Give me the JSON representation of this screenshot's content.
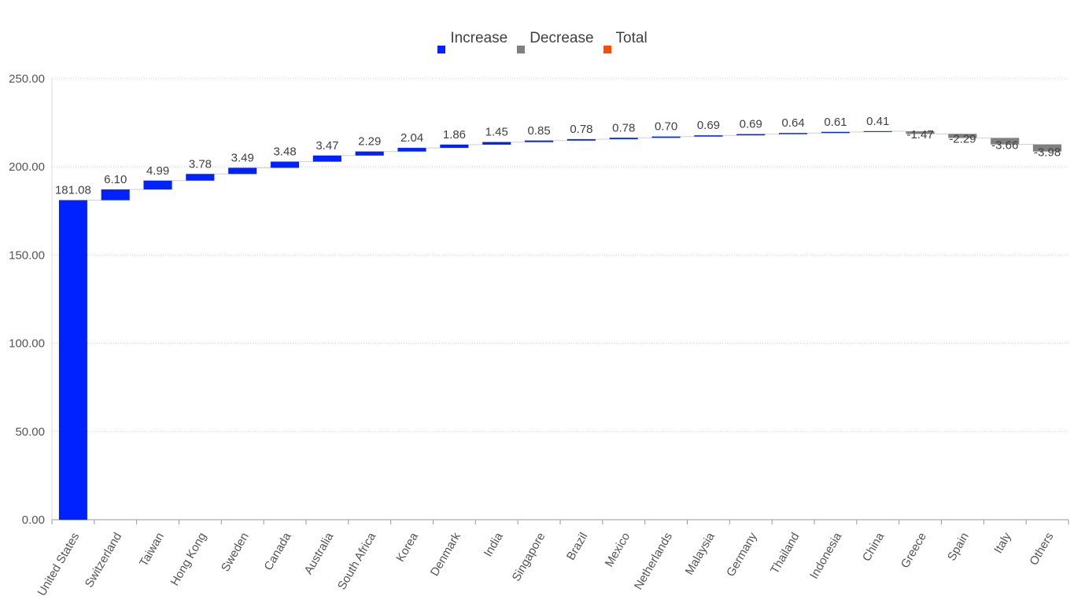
{
  "chart_data": {
    "type": "waterfall",
    "title": "",
    "xlabel": "",
    "ylabel": "",
    "ylim": [
      0,
      250
    ],
    "yticks": [
      0,
      50,
      100,
      150,
      200,
      250
    ],
    "ytick_labels": [
      "0.00",
      "50.00",
      "100.00",
      "150.00",
      "200.00",
      "250.00"
    ],
    "grid": true,
    "legend_position": "top-center",
    "legend": [
      {
        "label": "Increase",
        "color": "#0022ff"
      },
      {
        "label": "Decrease",
        "color": "#808080"
      },
      {
        "label": "Total",
        "color": "#ff4d00"
      }
    ],
    "categories": [
      "United States",
      "Switzerland",
      "Taiwan",
      "Hong Kong",
      "Sweden",
      "Canada",
      "Australia",
      "South Africa",
      "Korea",
      "Denmark",
      "India",
      "Singapore",
      "Brazil",
      "Mexico",
      "Netherlands",
      "Malaysia",
      "Germany",
      "Thailand",
      "Indonesia",
      "China",
      "Greece",
      "Spain",
      "Italy",
      "Others"
    ],
    "values": [
      181.08,
      6.1,
      4.99,
      3.78,
      3.49,
      3.48,
      3.47,
      2.29,
      2.04,
      1.86,
      1.45,
      0.85,
      0.78,
      0.78,
      0.7,
      0.69,
      0.69,
      0.64,
      0.61,
      0.41,
      -1.47,
      -2.29,
      -3.66,
      -3.98
    ],
    "value_labels": [
      "181.08",
      "6.10",
      "4.99",
      "3.78",
      "3.49",
      "3.48",
      "3.47",
      "2.29",
      "2.04",
      "1.86",
      "1.45",
      "0.85",
      "0.78",
      "0.78",
      "0.70",
      "0.69",
      "0.69",
      "0.64",
      "0.61",
      "0.41",
      "-1.47",
      "-2.29",
      "-3.66",
      "-3.98"
    ]
  }
}
